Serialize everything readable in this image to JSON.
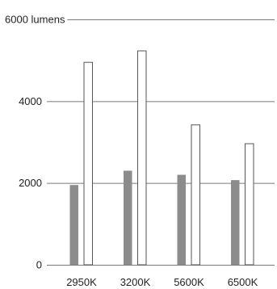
{
  "chart_data": {
    "type": "bar",
    "categories": [
      "2950K",
      "3200K",
      "5600K",
      "6500K"
    ],
    "series": [
      {
        "values": [
          1950,
          2300,
          2200,
          2070
        ],
        "color": "#8c8c8c",
        "outline": "none"
      },
      {
        "values": [
          4950,
          5230,
          3420,
          2960
        ],
        "color": "#ffffff",
        "outline": "#555555"
      }
    ],
    "ylim": [
      0,
      6000
    ],
    "yticks": [
      {
        "value": 0,
        "label": "0"
      },
      {
        "value": 2000,
        "label": "2000"
      },
      {
        "value": 4000,
        "label": "4000"
      },
      {
        "value": 6000,
        "label": "6000 lumens"
      }
    ],
    "title": "",
    "xlabel": "",
    "ylabel": "",
    "grid": true,
    "legend": "none"
  }
}
